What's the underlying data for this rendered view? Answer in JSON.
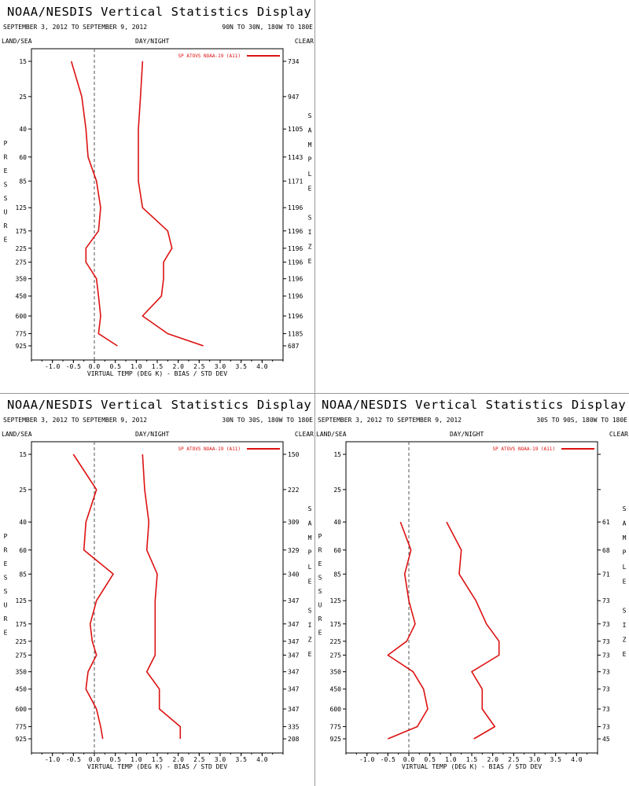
{
  "colors": {
    "series": "#dd1111",
    "frame": "#000000",
    "zero_line": "#555555"
  },
  "chart_data": [
    {
      "type": "line",
      "title": "NOAA/NESDIS Vertical Statistics Display",
      "date_range": "SEPTEMBER 3, 2012 TO SEPTEMBER 9, 2012",
      "region": "90N TO 30N, 180W TO 180E",
      "left_header": "LAND/SEA",
      "center_header": "DAY/NIGHT",
      "right_header": "CLEAR",
      "xlabel": "VIRTUAL TEMP (DEG K) - BIAS / STD DEV",
      "ylabel": "PRESSURE",
      "right_label": "SAMPLE SIZE",
      "legend": "SP ATOVS NOAA-19 (A11)",
      "xlim": [
        -1.5,
        4.5
      ],
      "x_ticks": [
        "-1.0",
        "-0.5",
        "0.0",
        "0.5",
        "1.0",
        "1.5",
        "2.0",
        "2.5",
        "3.0",
        "3.5",
        "4.0"
      ],
      "pressure_levels": [
        "15",
        "25",
        "40",
        "60",
        "85",
        "125",
        "175",
        "225",
        "275",
        "350",
        "450",
        "600",
        "775",
        "925"
      ],
      "sample_size": [
        "734",
        "947",
        "1105",
        "1143",
        "1171",
        "1196",
        "1196",
        "1196",
        "1196",
        "1196",
        "1196",
        "1196",
        "1185",
        "687"
      ],
      "series": [
        {
          "name": "BIAS",
          "values": [
            -0.55,
            -0.3,
            -0.2,
            -0.15,
            0.05,
            0.15,
            0.1,
            -0.2,
            -0.2,
            0.05,
            0.1,
            0.15,
            0.1,
            0.55
          ]
        },
        {
          "name": "STD DEV",
          "values": [
            1.15,
            1.1,
            1.05,
            1.05,
            1.05,
            1.15,
            1.75,
            1.85,
            1.65,
            1.65,
            1.6,
            1.15,
            1.75,
            2.6
          ]
        }
      ]
    },
    {
      "type": "line",
      "title": "NOAA/NESDIS Vertical Statistics Display",
      "date_range": "SEPTEMBER 3, 2012 TO SEPTEMBER 9, 2012",
      "region": "30N TO 30S, 180W TO 180E",
      "left_header": "LAND/SEA",
      "center_header": "DAY/NIGHT",
      "right_header": "CLEAR",
      "xlabel": "VIRTUAL TEMP (DEG K) - BIAS / STD DEV",
      "ylabel": "PRESSURE",
      "right_label": "SAMPLE SIZE",
      "legend": "SP ATOVS NOAA-19 (A11)",
      "xlim": [
        -1.5,
        4.5
      ],
      "x_ticks": [
        "-1.0",
        "-0.5",
        "0.0",
        "0.5",
        "1.0",
        "1.5",
        "2.0",
        "2.5",
        "3.0",
        "3.5",
        "4.0"
      ],
      "pressure_levels": [
        "15",
        "25",
        "40",
        "60",
        "85",
        "125",
        "175",
        "225",
        "275",
        "350",
        "450",
        "600",
        "775",
        "925"
      ],
      "sample_size": [
        "150",
        "222",
        "309",
        "329",
        "340",
        "347",
        "347",
        "347",
        "347",
        "347",
        "347",
        "347",
        "335",
        "208"
      ],
      "series": [
        {
          "name": "BIAS",
          "values": [
            -0.5,
            0.05,
            -0.2,
            -0.25,
            0.45,
            0.05,
            -0.1,
            -0.05,
            0.05,
            -0.15,
            -0.2,
            0.05,
            0.15,
            0.2
          ]
        },
        {
          "name": "STD DEV",
          "values": [
            1.15,
            1.2,
            1.3,
            1.25,
            1.5,
            1.45,
            1.45,
            1.45,
            1.45,
            1.25,
            1.55,
            1.55,
            2.05,
            2.05
          ]
        }
      ]
    },
    {
      "type": "line",
      "title": "NOAA/NESDIS Vertical Statistics Display",
      "date_range": "SEPTEMBER 3, 2012 TO SEPTEMBER 9, 2012",
      "region": "30S TO 90S, 180W TO 180E",
      "left_header": "LAND/SEA",
      "center_header": "DAY/NIGHT",
      "right_header": "CLEAR",
      "xlabel": "VIRTUAL TEMP (DEG K) - BIAS / STD DEV",
      "ylabel": "PRESSURE",
      "right_label": "SAMPLE SIZE",
      "legend": "SP ATOVS NOAA-19 (A11)",
      "xlim": [
        -1.5,
        4.5
      ],
      "x_ticks": [
        "-1.0",
        "-0.5",
        "0.0",
        "0.5",
        "1.0",
        "1.5",
        "2.0",
        "2.5",
        "3.0",
        "3.5",
        "4.0"
      ],
      "pressure_levels": [
        "15",
        "25",
        "40",
        "60",
        "85",
        "125",
        "175",
        "225",
        "275",
        "350",
        "450",
        "600",
        "775",
        "925"
      ],
      "sample_size": [
        "",
        "",
        "61",
        "68",
        "71",
        "73",
        "73",
        "73",
        "73",
        "73",
        "73",
        "73",
        "73",
        "45"
      ],
      "series": [
        {
          "name": "BIAS",
          "values": [
            null,
            null,
            -0.2,
            0.05,
            -0.1,
            0.0,
            0.15,
            -0.05,
            -0.5,
            0.1,
            0.35,
            0.45,
            0.2,
            -0.5
          ]
        },
        {
          "name": "STD DEV",
          "values": [
            null,
            null,
            0.9,
            1.25,
            1.2,
            1.6,
            1.85,
            2.15,
            2.15,
            1.5,
            1.75,
            1.75,
            2.05,
            1.55
          ]
        }
      ]
    }
  ]
}
